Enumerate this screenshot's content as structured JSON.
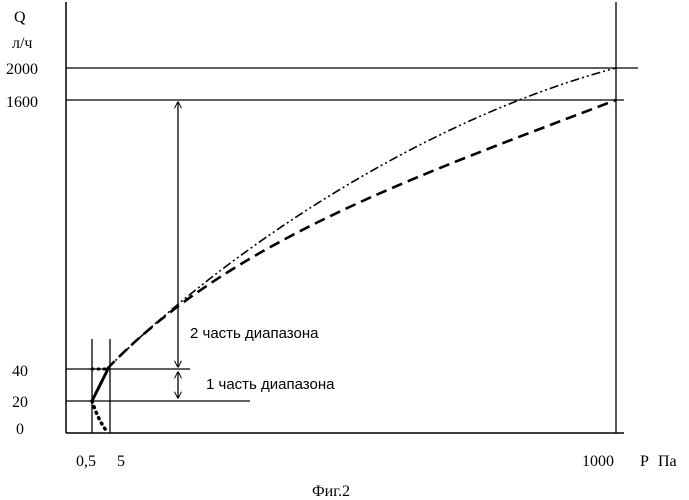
{
  "colors": {
    "ink": "#000000",
    "background": "#ffffff"
  },
  "y_axis": {
    "symbol": "Q",
    "unit": "л/ч",
    "ticks": [
      "2000",
      "1600",
      "40",
      "20",
      "0"
    ]
  },
  "x_axis": {
    "symbol": "P",
    "unit": "Па",
    "ticks": [
      "0,5",
      "5",
      "1000"
    ]
  },
  "annotations": {
    "range_part_2": "2 часть диапазона",
    "range_part_1": "1 часть диапазона"
  },
  "caption": "Фиг.2"
}
